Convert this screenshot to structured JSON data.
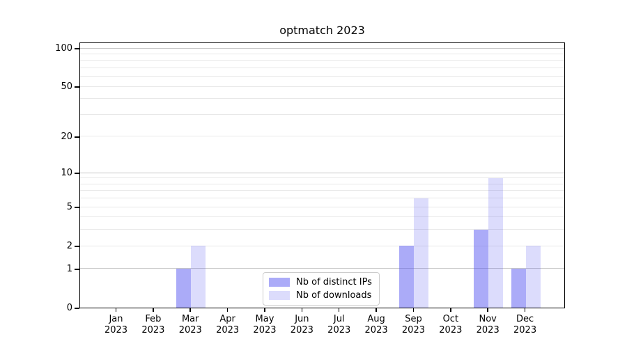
{
  "title": "optmatch 2023",
  "chart_data": {
    "type": "bar",
    "title": "optmatch 2023",
    "categories": [
      "Jan",
      "Feb",
      "Mar",
      "Apr",
      "May",
      "Jun",
      "Jul",
      "Aug",
      "Sep",
      "Oct",
      "Nov",
      "Dec"
    ],
    "year": "2023",
    "series": [
      {
        "name": "Nb of distinct IPs",
        "values": [
          0,
          0,
          1,
          0,
          0,
          0,
          0,
          0,
          2,
          0,
          3,
          1
        ],
        "color": "rgba(80,80,240,0.48)"
      },
      {
        "name": "Nb of downloads",
        "values": [
          0,
          0,
          2,
          0,
          0,
          0,
          0,
          0,
          6,
          0,
          9,
          2
        ],
        "color": "rgba(80,80,240,0.20)"
      }
    ],
    "xlabel": "",
    "ylabel": "",
    "yscale": "log1p",
    "ylim": [
      0,
      113
    ],
    "yticks": [
      0,
      1,
      2,
      5,
      10,
      20,
      50,
      100
    ],
    "major_gridlines": [
      1,
      10,
      100
    ],
    "minor_gridlines": [
      2,
      3,
      4,
      5,
      6,
      7,
      8,
      9,
      20,
      30,
      40,
      50,
      60,
      70,
      80,
      90
    ],
    "grid": true,
    "legend_position": "lower center"
  },
  "colors": {
    "bar_distinct_ips": "rgba(80,80,240,0.48)",
    "bar_downloads": "rgba(80,80,240,0.20)",
    "grid_major": "#c6c6c6",
    "grid_minor": "#e8e8e8",
    "spine": "#000000",
    "legend_border": "#cccccc"
  }
}
